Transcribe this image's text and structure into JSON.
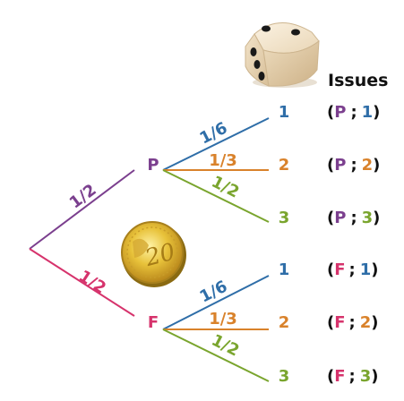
{
  "colors": {
    "purple": "#7b3f8e",
    "pink": "#d6336c",
    "blue": "#2f6ea8",
    "orange": "#d9822b",
    "green": "#7aa52e",
    "black": "#111111"
  },
  "icons": {
    "die": "die-icon",
    "coin": "coin-20-cent-icon"
  },
  "coin_text": "20",
  "header": {
    "title": "Issues"
  },
  "first_level": {
    "branches": [
      {
        "label": "P",
        "probability": "1/2"
      },
      {
        "label": "F",
        "probability": "1/2"
      }
    ]
  },
  "second_level": {
    "P": [
      {
        "outcome": "1",
        "probability": "1/6"
      },
      {
        "outcome": "2",
        "probability": "1/3"
      },
      {
        "outcome": "3",
        "probability": "1/2"
      }
    ],
    "F": [
      {
        "outcome": "1",
        "probability": "1/6"
      },
      {
        "outcome": "2",
        "probability": "1/3"
      },
      {
        "outcome": "3",
        "probability": "1/2"
      }
    ]
  },
  "issues": [
    {
      "coin": "P",
      "sep": ";",
      "die": "1",
      "open": "(",
      "close": ")"
    },
    {
      "coin": "P",
      "sep": ";",
      "die": "2",
      "open": "(",
      "close": ")"
    },
    {
      "coin": "P",
      "sep": ";",
      "die": "3",
      "open": "(",
      "close": ")"
    },
    {
      "coin": "F",
      "sep": ";",
      "die": "1",
      "open": "(",
      "close": ")"
    },
    {
      "coin": "F",
      "sep": ";",
      "die": "2",
      "open": "(",
      "close": ")"
    },
    {
      "coin": "F",
      "sep": ";",
      "die": "3",
      "open": "(",
      "close": ")"
    }
  ]
}
